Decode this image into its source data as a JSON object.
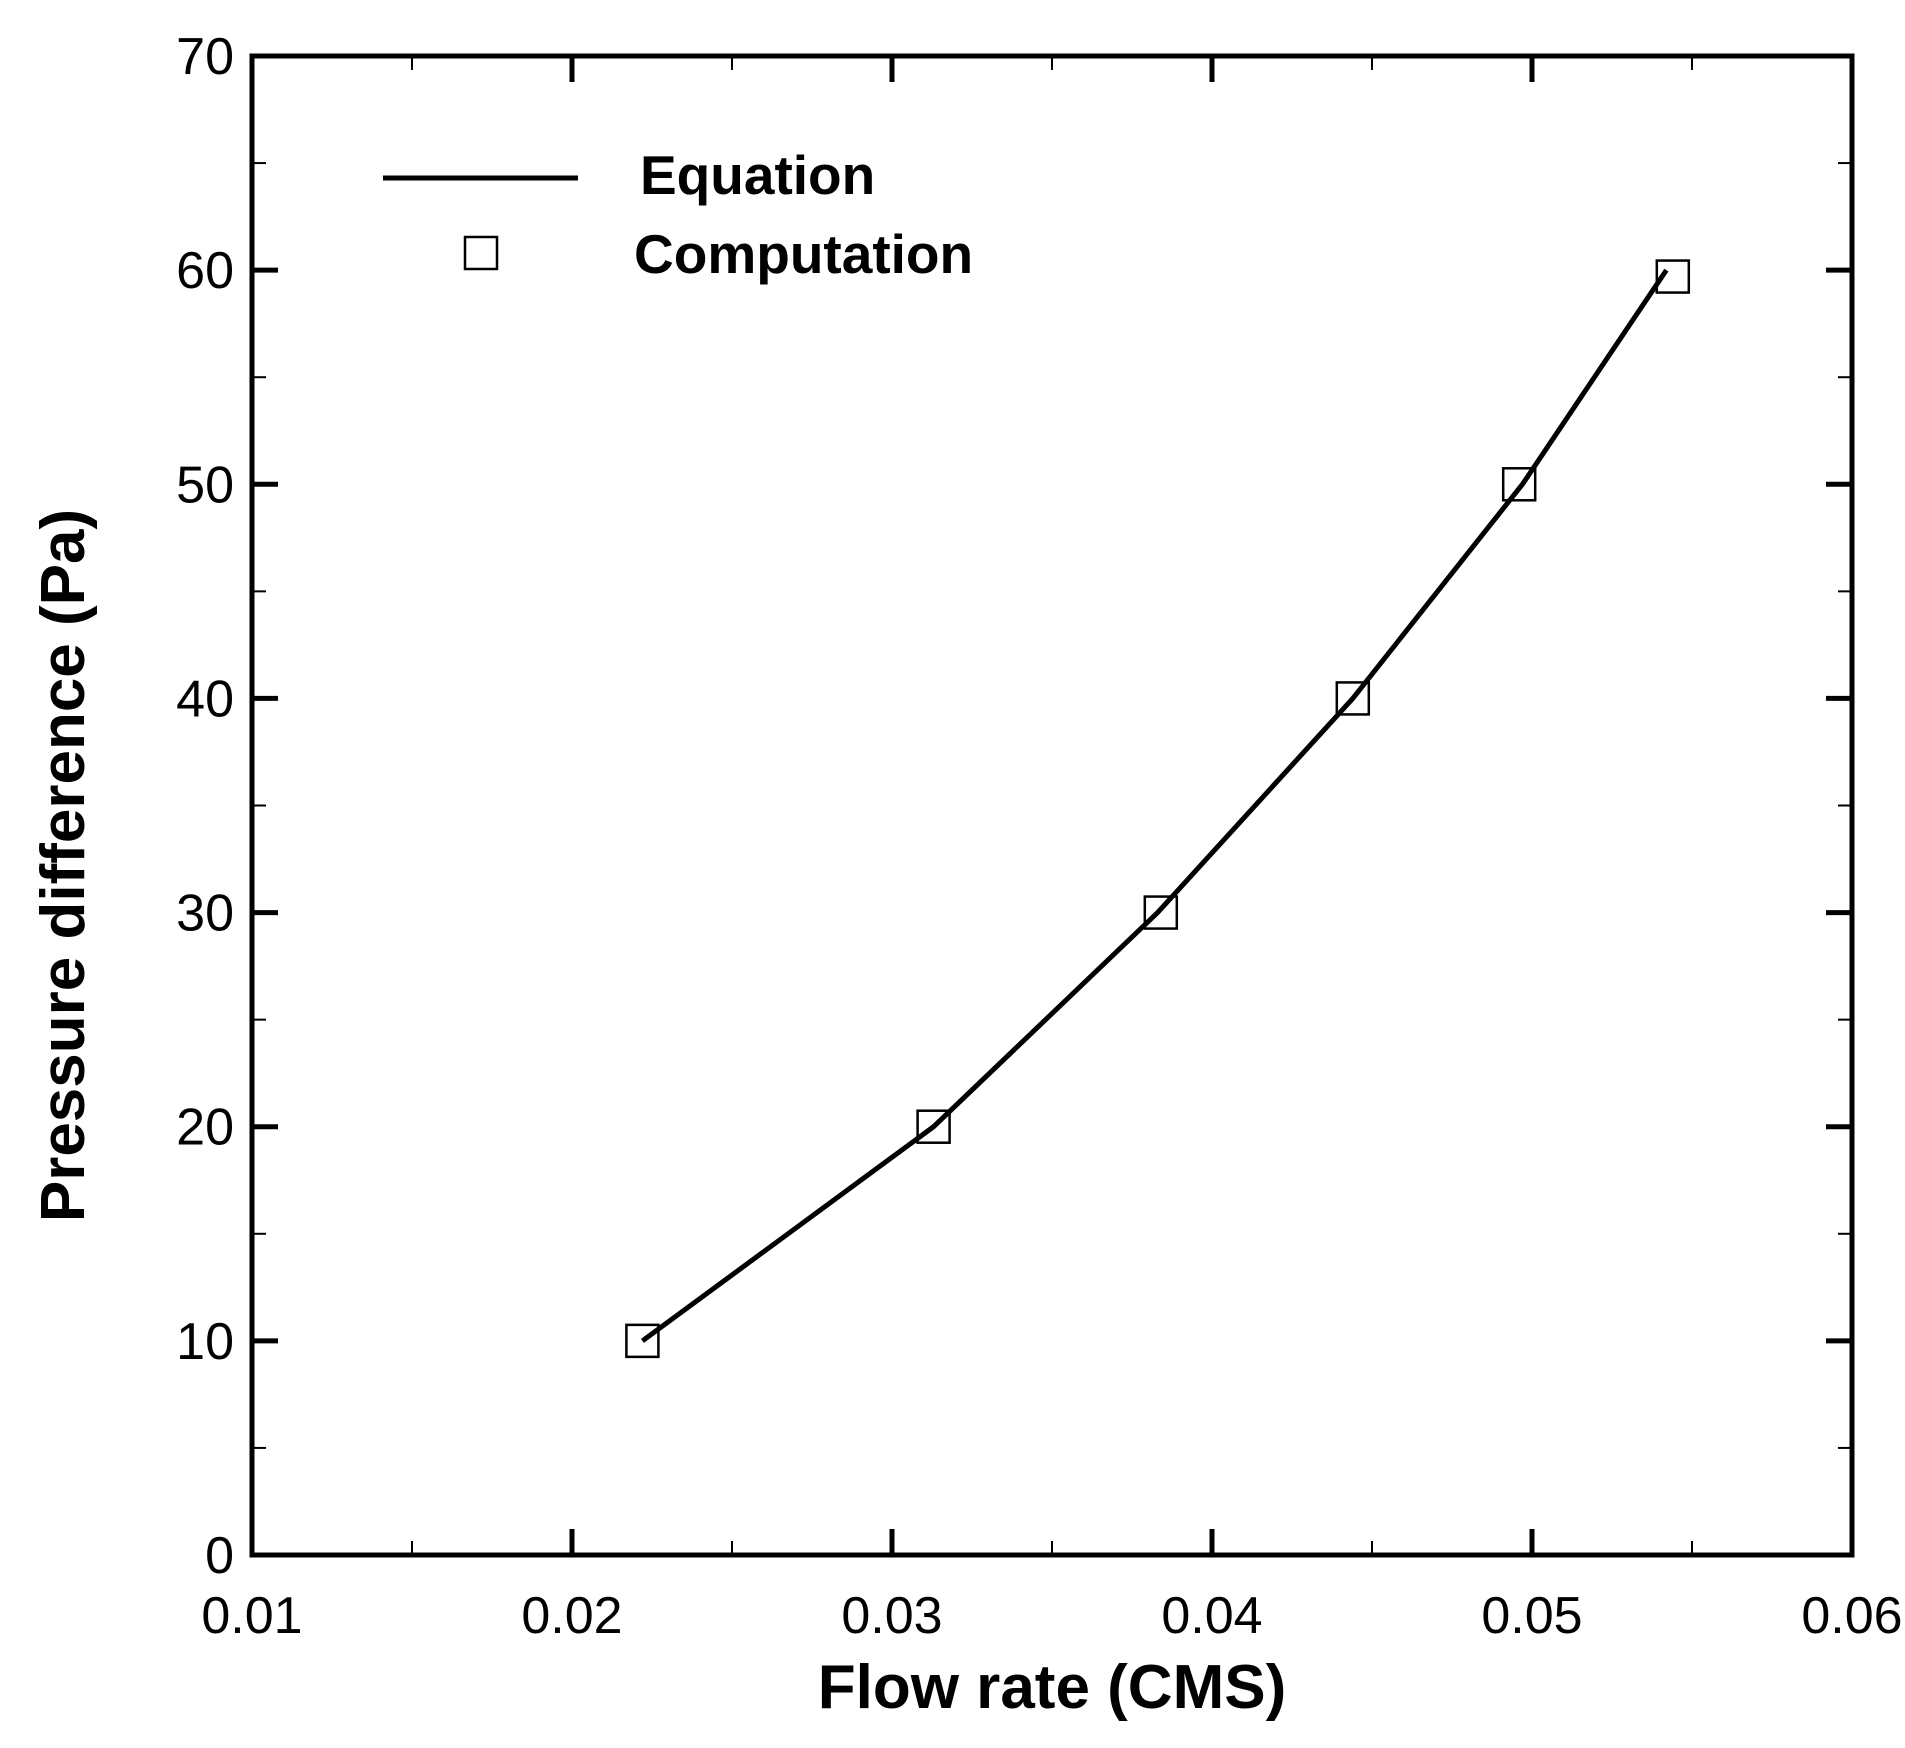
{
  "chart_data": {
    "type": "line",
    "title": "",
    "xlabel": "Flow rate (CMS)",
    "ylabel": "Pressure difference (Pa)",
    "xlim": [
      0.01,
      0.06
    ],
    "ylim": [
      0,
      70
    ],
    "x_ticks": [
      "0.01",
      "0.02",
      "0.03",
      "0.04",
      "0.05",
      "0.06"
    ],
    "y_ticks": [
      "0",
      "10",
      "20",
      "30",
      "40",
      "50",
      "60",
      "70"
    ],
    "grid": false,
    "legend_position": "top-left",
    "series": [
      {
        "name": "Equation",
        "style": "line",
        "color": "#000000",
        "x": [
          0.0222,
          0.0313,
          0.0383,
          0.0444,
          0.0497,
          0.0542
        ],
        "y": [
          10,
          20,
          30,
          40,
          50,
          60
        ]
      },
      {
        "name": "Computation",
        "style": "open-square-markers",
        "color": "#000000",
        "x": [
          0.0222,
          0.0313,
          0.0384,
          0.0444,
          0.0496,
          0.0544
        ],
        "y": [
          10,
          20,
          30,
          40,
          50,
          59.7
        ]
      }
    ]
  }
}
